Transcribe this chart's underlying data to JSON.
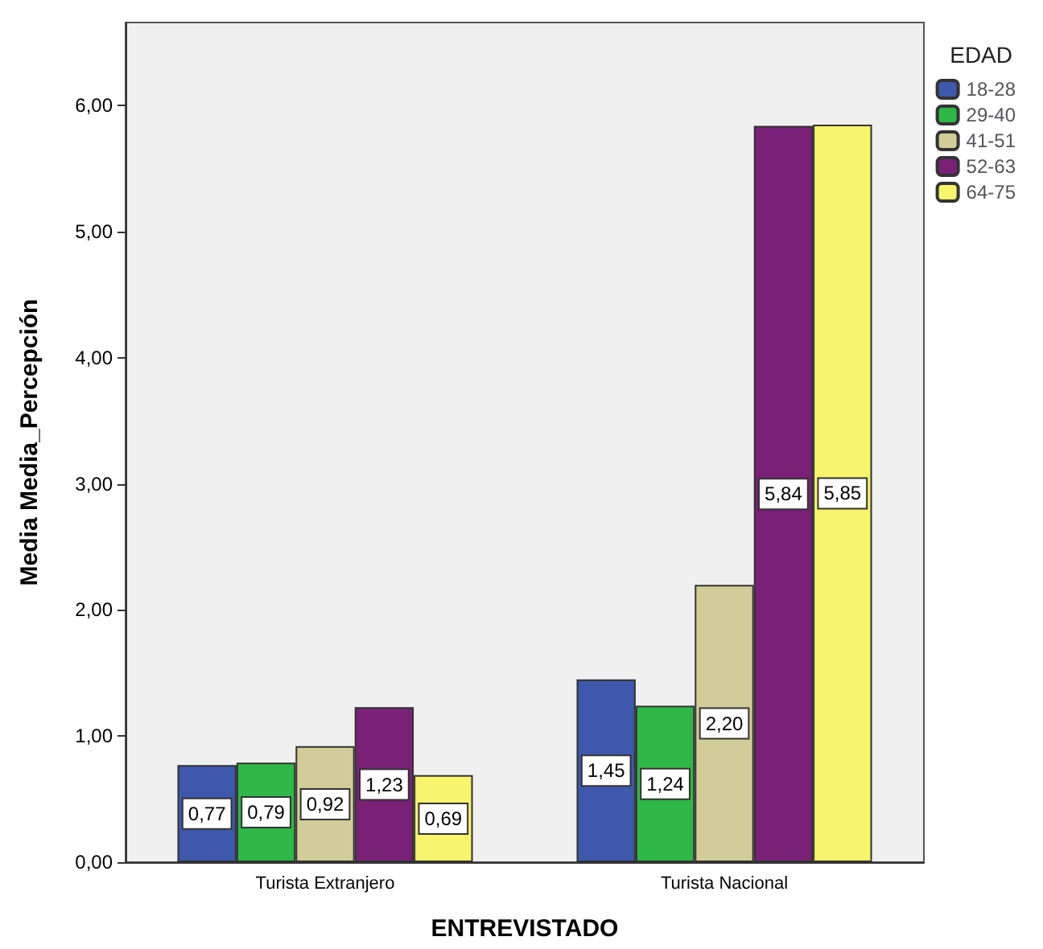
{
  "chart_data": {
    "type": "bar",
    "xlabel": "ENTREVISTADO",
    "ylabel": "Media Media_Percepción",
    "legend_title": "EDAD",
    "legend": "right",
    "categories": [
      "Turista Extranjero",
      "Turista Nacional"
    ],
    "series": [
      {
        "name": "18-28",
        "color": "#3e58ac",
        "values": [
          0.77,
          1.45
        ],
        "value_labels": [
          "0,77",
          "1,45"
        ]
      },
      {
        "name": "29-40",
        "color": "#2eb848",
        "values": [
          0.79,
          1.24
        ],
        "value_labels": [
          "0,79",
          "1,24"
        ]
      },
      {
        "name": "41-51",
        "color": "#d2cc98",
        "values": [
          0.92,
          2.2
        ],
        "value_labels": [
          "0,92",
          "2,20"
        ]
      },
      {
        "name": "52-63",
        "color": "#782177",
        "values": [
          1.23,
          5.84
        ],
        "value_labels": [
          "1,23",
          "5,84"
        ]
      },
      {
        "name": "64-75",
        "color": "#f8f46c",
        "values": [
          0.69,
          5.85
        ],
        "value_labels": [
          "0,69",
          "5,85"
        ]
      }
    ],
    "ylim": [
      0,
      6.66
    ],
    "yticks": [
      {
        "value": 0,
        "label": "0,00"
      },
      {
        "value": 1,
        "label": "1,00"
      },
      {
        "value": 2,
        "label": "2,00"
      },
      {
        "value": 3,
        "label": "3,00"
      },
      {
        "value": 4,
        "label": "4,00"
      },
      {
        "value": 5,
        "label": "5,00"
      },
      {
        "value": 6,
        "label": "6,00"
      }
    ],
    "grid": false
  }
}
